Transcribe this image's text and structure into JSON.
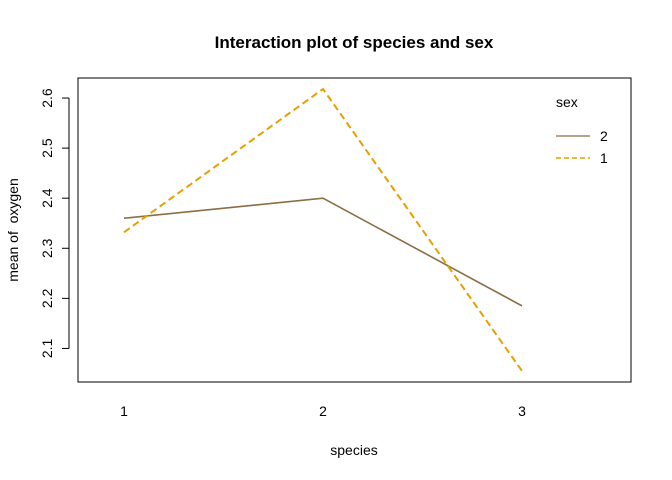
{
  "chart_data": {
    "type": "line",
    "title": "Interaction plot of species and sex",
    "xlabel": "species",
    "ylabel": "mean of  oxygen",
    "categories": [
      "1",
      "2",
      "3"
    ],
    "y_ticks": [
      "2.1",
      "2.2",
      "2.3",
      "2.4",
      "2.5",
      "2.6"
    ],
    "ylim": [
      2.033,
      2.64
    ],
    "series": [
      {
        "name": "2",
        "values": [
          2.36,
          2.4,
          2.185
        ],
        "color": "#8B6E46",
        "dash": "solid"
      },
      {
        "name": "1",
        "values": [
          2.332,
          2.618,
          2.055
        ],
        "color": "#E69F00",
        "dash": "dashed"
      }
    ],
    "legend": {
      "title": "sex",
      "position": "top-right"
    },
    "grid": false
  }
}
